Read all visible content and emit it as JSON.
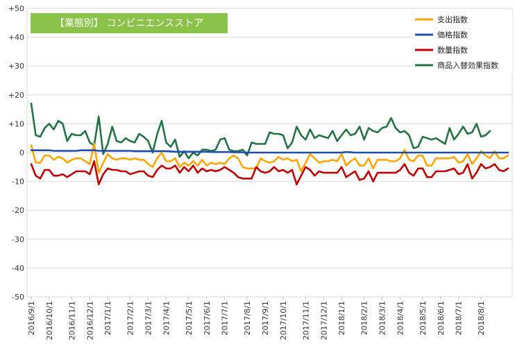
{
  "chart_data": {
    "type": "line",
    "title": "【業態別】 コンビニエンスストア",
    "title_bg_color": "#8BC34A",
    "ylim": [
      -50,
      50
    ],
    "yticks": [
      "+50",
      "+40",
      "+30",
      "+20",
      "+10",
      "0",
      "-10",
      "-20",
      "-30",
      "-40",
      "-50"
    ],
    "ytick_values": [
      50,
      40,
      30,
      20,
      10,
      0,
      -10,
      -20,
      -30,
      -40,
      -50
    ],
    "xlabels": [
      "2016/9/1",
      "2016/10/1",
      "2016/11/1",
      "2016/12/1",
      "2017/1/1",
      "2017/2/1",
      "2017/3/1",
      "2017/4/1",
      "2017/5/1",
      "2017/6/1",
      "2017/7/1",
      "2017/8/1",
      "2017/9/1",
      "2017/10/1",
      "2017/11/1",
      "2017/12/1",
      "2018/1/1",
      "2018/2/1",
      "2018/3/1",
      "2018/4/1",
      "2018/5/1",
      "2018/6/1",
      "2018/7/1",
      "2018/8/1"
    ],
    "xlabel_week_index": [
      0,
      4,
      9,
      13,
      17,
      22,
      26,
      30,
      35,
      39,
      43,
      48,
      52,
      56,
      61,
      65,
      69,
      74,
      78,
      82,
      87,
      91,
      95,
      100
    ],
    "grid": true,
    "legend_position": "top-right",
    "series": [
      {
        "name": "支出指数",
        "color": "#FFA500",
        "values": [
          2.5,
          -3.5,
          -3.5,
          -1,
          -1,
          -2.5,
          -1.5,
          -2,
          -3.5,
          -2.5,
          -2,
          -2,
          -3,
          -4,
          3,
          -7,
          -3.5,
          -0.5,
          -2,
          -2.5,
          -2,
          -2,
          -2.5,
          -2,
          -2.5,
          -2.5,
          -4,
          -5,
          -2,
          0,
          -3,
          -3,
          -2,
          -5,
          -3.5,
          -4.5,
          -3,
          -4.5,
          -2.5,
          -4.5,
          -3.5,
          -4,
          -3.5,
          -4,
          -2,
          -1,
          -2,
          -5,
          -5.5,
          -5.5,
          -5.5,
          -2,
          -3,
          -3.5,
          -3,
          -1.5,
          -2.5,
          -2,
          -3,
          -2.5,
          -6.5,
          -3.5,
          -0.5,
          -2,
          -3.5,
          -3,
          -3,
          -2.5,
          -3,
          -0.5,
          -4.5,
          -3,
          -2,
          -4.5,
          -4.5,
          -2,
          -5.5,
          -2.5,
          -2.5,
          -2.5,
          -3,
          -3,
          -2,
          1,
          -2.5,
          -3,
          -1,
          -1,
          -4.5,
          -4.5,
          -2,
          -2,
          -2,
          -2,
          -1.5,
          -3.5,
          -3,
          -0.5,
          -4,
          -2,
          0.5,
          -1,
          -2,
          0.5,
          -2,
          -2,
          -1
        ]
      },
      {
        "name": "価格指数",
        "color": "#1F4EAA",
        "values": [
          0.8,
          0.8,
          0.8,
          0.8,
          0.8,
          0.6,
          0.6,
          0.6,
          0.6,
          0.6,
          0.6,
          0.8,
          0.8,
          0.8,
          0.8,
          0.6,
          0.6,
          0.6,
          0.6,
          0.6,
          0.6,
          0.6,
          0.6,
          0.5,
          0.5,
          0.5,
          0.5,
          0.5,
          0.5,
          0.5,
          0.5,
          0.4,
          0.3,
          0.3,
          0.3,
          0.3,
          0.3,
          0.3,
          0.3,
          0.3,
          0.2,
          0.2,
          0.2,
          0.2,
          0.2,
          0.1,
          0.1,
          0.1,
          0,
          0,
          0,
          0,
          0,
          0,
          0,
          0,
          0,
          0,
          0,
          0,
          0,
          0,
          0,
          0,
          0,
          0,
          0,
          0,
          0,
          0,
          0.2,
          0.1,
          0,
          0,
          0,
          0,
          0,
          0,
          0,
          0,
          0,
          0,
          0,
          0,
          0,
          0,
          0,
          0,
          0,
          0,
          0,
          0,
          0,
          0,
          0,
          0,
          0,
          0,
          0,
          0,
          0,
          0,
          0,
          0,
          0,
          0,
          0
        ]
      },
      {
        "name": "数量指数",
        "color": "#C00000",
        "values": [
          -4,
          -8,
          -9,
          -6,
          -6,
          -8,
          -8,
          -7.5,
          -8.5,
          -7.5,
          -6.5,
          -6.5,
          -6.5,
          -7.5,
          -3,
          -11,
          -7.5,
          -5.5,
          -6,
          -6,
          -6.5,
          -6.5,
          -7.5,
          -7,
          -6.5,
          -6.5,
          -8,
          -8.5,
          -6,
          -4.5,
          -5.5,
          -5.5,
          -4.5,
          -7,
          -5,
          -6.5,
          -4.5,
          -7,
          -5.5,
          -6.5,
          -6,
          -6.5,
          -6,
          -5,
          -6,
          -7,
          -8.5,
          -9,
          -9,
          -9,
          -5,
          -6.5,
          -7,
          -6.5,
          -5,
          -6.5,
          -6,
          -7,
          -6,
          -11,
          -8,
          -5,
          -6,
          -8,
          -6.5,
          -7,
          -7,
          -7,
          -7,
          -5,
          -8.5,
          -7.5,
          -6.5,
          -9.5,
          -9,
          -6.5,
          -10,
          -7,
          -7,
          -7,
          -7,
          -7,
          -6,
          -4,
          -7,
          -8,
          -5.5,
          -5.5,
          -8.5,
          -8.5,
          -6.5,
          -6.5,
          -6.5,
          -6,
          -5.5,
          -7.5,
          -7,
          -4,
          -9,
          -7,
          -4,
          -5.5,
          -5,
          -4,
          -6,
          -6.5,
          -5.5
        ]
      },
      {
        "name": "商品入替効果指数",
        "color": "#217346",
        "values": [
          17,
          6,
          5.5,
          8.5,
          10,
          8,
          11,
          10,
          4,
          6.5,
          6,
          6,
          7.5,
          3.5,
          2.5,
          12.5,
          -0.5,
          3,
          9,
          4,
          3.5,
          5,
          4,
          3.5,
          6.5,
          5.5,
          4,
          0,
          6.5,
          11,
          3.5,
          2,
          4.5,
          -1.5,
          0.5,
          -2,
          0,
          -1,
          1,
          1,
          0.5,
          1,
          4.5,
          5,
          1,
          0.5,
          0.5,
          1,
          -1,
          3.5,
          3,
          3,
          3,
          7,
          6.5,
          6.5,
          6,
          1.5,
          3.5,
          9,
          6,
          4.5,
          8,
          5,
          6,
          5.5,
          5,
          7.5,
          4,
          6,
          8,
          6,
          6.5,
          9,
          4.5,
          8.5,
          7.5,
          7,
          8.5,
          9,
          12,
          8.5,
          7,
          7.5,
          6,
          1.5,
          2,
          5.5,
          5,
          4.5,
          5,
          4,
          3,
          8.5,
          4.5,
          6.5,
          9,
          6.5,
          7,
          10,
          5.5,
          6,
          7.5
        ]
      }
    ]
  }
}
